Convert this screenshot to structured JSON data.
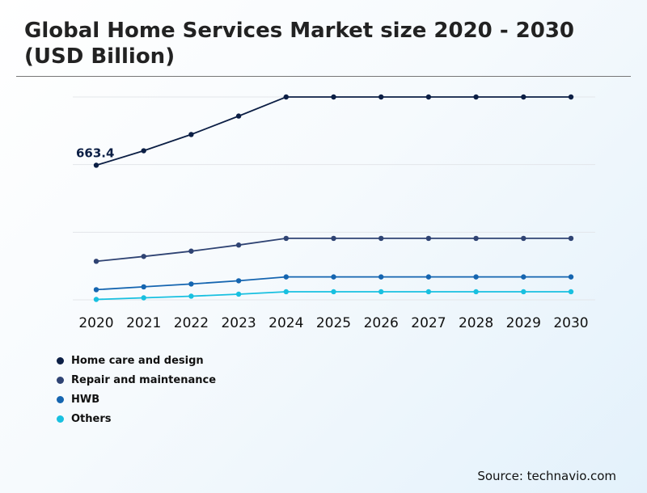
{
  "chart_data": {
    "type": "line",
    "title": "Global Home Services Market size 2020 - 2030 (USD Billion)",
    "source": "Source: technavio.com",
    "x": [
      "2020",
      "2021",
      "2022",
      "2023",
      "2024",
      "2025",
      "2026",
      "2027",
      "2028",
      "2029",
      "2030"
    ],
    "ylim": [
      0,
      1000
    ],
    "grid": true,
    "legend_position": "bottom-left",
    "series": [
      {
        "name": "Home care and design",
        "color": "#0c1f45",
        "values": [
          663.4,
          735,
          815,
          906,
          1000,
          1000,
          1000,
          1000,
          1000,
          1000,
          1000
        ]
      },
      {
        "name": "Repair and maintenance",
        "color": "#2f4373",
        "values": [
          190,
          214,
          240,
          270,
          303,
          303,
          303,
          303,
          303,
          303,
          303
        ]
      },
      {
        "name": "HWB",
        "color": "#1565b0",
        "values": [
          50,
          64,
          78,
          94,
          113,
          113,
          113,
          113,
          113,
          113,
          113
        ]
      },
      {
        "name": "Others",
        "color": "#18c0e0",
        "values": [
          2,
          10,
          18,
          28,
          40,
          40,
          40,
          40,
          40,
          40,
          40
        ]
      }
    ],
    "annotations": [
      {
        "series": 0,
        "index": 0,
        "text": "663.4"
      }
    ]
  }
}
